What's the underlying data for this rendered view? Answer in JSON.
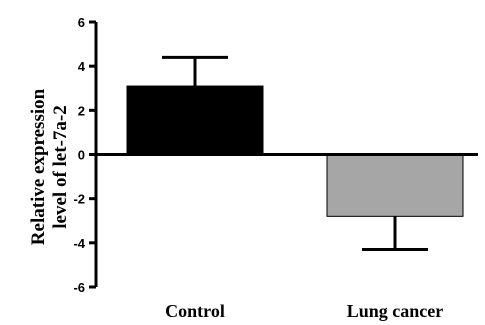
{
  "chart_data": {
    "type": "bar",
    "categories": [
      "Control",
      "Lung cancer"
    ],
    "values": [
      3.1,
      -2.8
    ],
    "error": [
      1.3,
      1.5
    ],
    "colors": [
      "#000000",
      "#a6a6a6"
    ],
    "title": "",
    "xlabel": "",
    "ylabel_lines": [
      "Relative expression",
      "level of let-7a-2"
    ],
    "ylim": [
      -6,
      6
    ],
    "yticks": [
      6,
      4,
      2,
      0,
      -2,
      -4,
      -6
    ],
    "grid": false,
    "legend": "none"
  }
}
